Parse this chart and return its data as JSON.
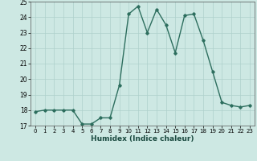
{
  "x": [
    0,
    1,
    2,
    3,
    4,
    5,
    6,
    7,
    8,
    9,
    10,
    11,
    12,
    13,
    14,
    15,
    16,
    17,
    18,
    19,
    20,
    21,
    22,
    23
  ],
  "y": [
    17.9,
    18.0,
    18.0,
    18.0,
    18.0,
    17.1,
    17.1,
    17.5,
    17.5,
    19.6,
    24.2,
    24.7,
    23.0,
    24.5,
    23.5,
    21.7,
    24.1,
    24.2,
    22.5,
    20.5,
    18.5,
    18.3,
    18.2,
    18.3
  ],
  "xlabel": "Humidex (Indice chaleur)",
  "ylim": [
    17,
    25
  ],
  "xlim": [
    -0.5,
    23.5
  ],
  "yticks": [
    17,
    18,
    19,
    20,
    21,
    22,
    23,
    24,
    25
  ],
  "xticks": [
    0,
    1,
    2,
    3,
    4,
    5,
    6,
    7,
    8,
    9,
    10,
    11,
    12,
    13,
    14,
    15,
    16,
    17,
    18,
    19,
    20,
    21,
    22,
    23
  ],
  "line_color": "#2d6e5e",
  "marker": "D",
  "marker_size": 1.8,
  "bg_color": "#cde8e3",
  "grid_color": "#aed0cb",
  "line_width": 1.0,
  "xtick_fontsize": 5.0,
  "ytick_fontsize": 5.5,
  "label_fontsize": 6.5
}
